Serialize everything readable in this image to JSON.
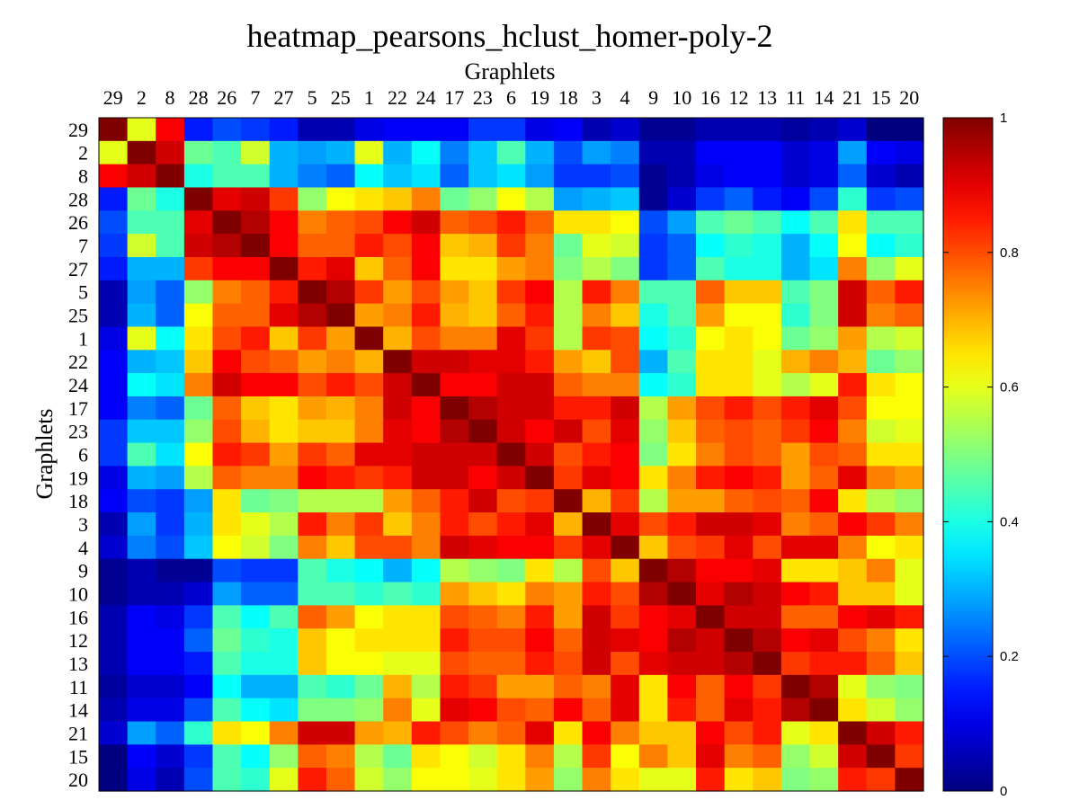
{
  "chart_data": {
    "type": "heatmap",
    "title": "heatmap_pearsons_hclust_homer-poly-2",
    "xlabel": "Graphlets",
    "ylabel": "Graphlets",
    "labels": [
      "29",
      "2",
      "8",
      "28",
      "26",
      "7",
      "27",
      "5",
      "25",
      "1",
      "22",
      "24",
      "17",
      "23",
      "6",
      "19",
      "18",
      "3",
      "4",
      "9",
      "10",
      "16",
      "12",
      "13",
      "11",
      "14",
      "21",
      "15",
      "20"
    ],
    "colorbar": {
      "min": 0,
      "max": 1,
      "ticks": [
        0,
        0.2,
        0.4,
        0.6,
        0.8,
        1
      ],
      "tick_labels": [
        "0",
        "0.2",
        "0.4",
        "0.6",
        "0.8",
        "1"
      ]
    },
    "colormap": "jet",
    "values": [
      [
        1.0,
        0.6,
        0.88,
        0.15,
        0.2,
        0.18,
        0.15,
        0.05,
        0.05,
        0.1,
        0.12,
        0.12,
        0.12,
        0.18,
        0.18,
        0.1,
        0.12,
        0.05,
        0.08,
        0.02,
        0.02,
        0.05,
        0.05,
        0.05,
        0.03,
        0.05,
        0.08,
        0.0,
        0.0
      ],
      [
        0.6,
        1.0,
        0.92,
        0.48,
        0.45,
        0.58,
        0.3,
        0.28,
        0.3,
        0.6,
        0.3,
        0.38,
        0.25,
        0.32,
        0.45,
        0.3,
        0.2,
        0.28,
        0.25,
        0.05,
        0.05,
        0.12,
        0.12,
        0.12,
        0.08,
        0.1,
        0.28,
        0.12,
        0.1
      ],
      [
        0.88,
        0.92,
        1.0,
        0.4,
        0.45,
        0.45,
        0.3,
        0.25,
        0.22,
        0.38,
        0.32,
        0.35,
        0.22,
        0.32,
        0.35,
        0.28,
        0.18,
        0.18,
        0.2,
        0.02,
        0.05,
        0.1,
        0.12,
        0.12,
        0.08,
        0.1,
        0.22,
        0.08,
        0.05
      ],
      [
        0.15,
        0.48,
        0.4,
        1.0,
        0.9,
        0.92,
        0.82,
        0.52,
        0.62,
        0.65,
        0.68,
        0.75,
        0.48,
        0.52,
        0.62,
        0.55,
        0.28,
        0.3,
        0.32,
        0.02,
        0.08,
        0.18,
        0.22,
        0.15,
        0.12,
        0.2,
        0.42,
        0.18,
        0.2
      ],
      [
        0.2,
        0.45,
        0.45,
        0.9,
        1.0,
        0.95,
        0.88,
        0.75,
        0.78,
        0.8,
        0.88,
        0.92,
        0.78,
        0.8,
        0.85,
        0.78,
        0.65,
        0.65,
        0.62,
        0.2,
        0.28,
        0.45,
        0.48,
        0.45,
        0.38,
        0.45,
        0.65,
        0.45,
        0.45
      ],
      [
        0.18,
        0.58,
        0.45,
        0.92,
        0.95,
        1.0,
        0.88,
        0.78,
        0.78,
        0.85,
        0.8,
        0.88,
        0.68,
        0.7,
        0.82,
        0.75,
        0.48,
        0.6,
        0.58,
        0.18,
        0.22,
        0.38,
        0.42,
        0.4,
        0.3,
        0.38,
        0.62,
        0.38,
        0.42
      ],
      [
        0.15,
        0.3,
        0.3,
        0.82,
        0.88,
        0.88,
        1.0,
        0.85,
        0.9,
        0.68,
        0.78,
        0.88,
        0.65,
        0.65,
        0.72,
        0.75,
        0.5,
        0.55,
        0.5,
        0.18,
        0.22,
        0.45,
        0.4,
        0.4,
        0.3,
        0.35,
        0.75,
        0.52,
        0.6
      ],
      [
        0.05,
        0.28,
        0.22,
        0.52,
        0.75,
        0.78,
        0.85,
        1.0,
        0.95,
        0.82,
        0.72,
        0.8,
        0.72,
        0.68,
        0.82,
        0.88,
        0.55,
        0.85,
        0.75,
        0.45,
        0.45,
        0.78,
        0.68,
        0.68,
        0.45,
        0.5,
        0.92,
        0.78,
        0.85
      ],
      [
        0.05,
        0.3,
        0.22,
        0.62,
        0.78,
        0.78,
        0.9,
        0.95,
        1.0,
        0.72,
        0.75,
        0.85,
        0.7,
        0.68,
        0.78,
        0.85,
        0.55,
        0.75,
        0.68,
        0.4,
        0.45,
        0.72,
        0.62,
        0.62,
        0.42,
        0.5,
        0.92,
        0.75,
        0.78
      ],
      [
        0.1,
        0.6,
        0.38,
        0.65,
        0.8,
        0.85,
        0.68,
        0.82,
        0.72,
        1.0,
        0.7,
        0.8,
        0.75,
        0.75,
        0.9,
        0.82,
        0.55,
        0.82,
        0.8,
        0.38,
        0.42,
        0.62,
        0.65,
        0.62,
        0.48,
        0.52,
        0.72,
        0.55,
        0.58
      ],
      [
        0.12,
        0.3,
        0.32,
        0.68,
        0.88,
        0.8,
        0.78,
        0.72,
        0.75,
        0.7,
        1.0,
        0.92,
        0.92,
        0.9,
        0.9,
        0.85,
        0.72,
        0.68,
        0.8,
        0.3,
        0.45,
        0.65,
        0.65,
        0.6,
        0.7,
        0.75,
        0.7,
        0.48,
        0.52
      ],
      [
        0.12,
        0.38,
        0.35,
        0.75,
        0.92,
        0.88,
        0.88,
        0.8,
        0.85,
        0.8,
        0.92,
        1.0,
        0.88,
        0.88,
        0.92,
        0.92,
        0.78,
        0.75,
        0.75,
        0.38,
        0.42,
        0.65,
        0.65,
        0.6,
        0.55,
        0.6,
        0.85,
        0.65,
        0.62
      ],
      [
        0.12,
        0.25,
        0.22,
        0.48,
        0.78,
        0.68,
        0.65,
        0.72,
        0.7,
        0.75,
        0.92,
        0.88,
        1.0,
        0.95,
        0.92,
        0.92,
        0.85,
        0.85,
        0.92,
        0.55,
        0.72,
        0.8,
        0.85,
        0.8,
        0.85,
        0.9,
        0.8,
        0.62,
        0.62
      ],
      [
        0.18,
        0.32,
        0.32,
        0.52,
        0.8,
        0.7,
        0.65,
        0.68,
        0.68,
        0.75,
        0.9,
        0.88,
        0.95,
        1.0,
        0.92,
        0.88,
        0.92,
        0.8,
        0.9,
        0.52,
        0.68,
        0.78,
        0.8,
        0.78,
        0.82,
        0.88,
        0.75,
        0.58,
        0.6
      ],
      [
        0.18,
        0.45,
        0.35,
        0.62,
        0.85,
        0.82,
        0.72,
        0.82,
        0.78,
        0.9,
        0.9,
        0.92,
        0.92,
        0.92,
        1.0,
        0.92,
        0.8,
        0.85,
        0.88,
        0.5,
        0.65,
        0.75,
        0.8,
        0.78,
        0.72,
        0.8,
        0.78,
        0.65,
        0.65
      ],
      [
        0.1,
        0.3,
        0.28,
        0.55,
        0.78,
        0.75,
        0.75,
        0.88,
        0.85,
        0.82,
        0.85,
        0.92,
        0.92,
        0.88,
        0.92,
        1.0,
        0.82,
        0.9,
        0.88,
        0.65,
        0.75,
        0.85,
        0.88,
        0.85,
        0.72,
        0.78,
        0.9,
        0.75,
        0.72
      ],
      [
        0.12,
        0.2,
        0.18,
        0.28,
        0.65,
        0.48,
        0.5,
        0.55,
        0.55,
        0.55,
        0.72,
        0.78,
        0.85,
        0.92,
        0.8,
        0.82,
        1.0,
        0.7,
        0.82,
        0.55,
        0.72,
        0.72,
        0.78,
        0.8,
        0.78,
        0.88,
        0.65,
        0.55,
        0.52
      ],
      [
        0.05,
        0.28,
        0.18,
        0.3,
        0.65,
        0.6,
        0.55,
        0.85,
        0.75,
        0.82,
        0.68,
        0.75,
        0.85,
        0.8,
        0.85,
        0.9,
        0.7,
        1.0,
        0.9,
        0.8,
        0.85,
        0.92,
        0.92,
        0.9,
        0.75,
        0.78,
        0.88,
        0.82,
        0.75
      ],
      [
        0.08,
        0.25,
        0.2,
        0.32,
        0.62,
        0.58,
        0.5,
        0.75,
        0.68,
        0.8,
        0.8,
        0.75,
        0.92,
        0.9,
        0.88,
        0.88,
        0.82,
        0.9,
        1.0,
        0.68,
        0.8,
        0.82,
        0.9,
        0.8,
        0.9,
        0.9,
        0.75,
        0.62,
        0.65
      ],
      [
        0.02,
        0.05,
        0.02,
        0.02,
        0.2,
        0.18,
        0.18,
        0.45,
        0.4,
        0.38,
        0.3,
        0.38,
        0.55,
        0.52,
        0.5,
        0.65,
        0.55,
        0.8,
        0.68,
        1.0,
        0.95,
        0.88,
        0.88,
        0.9,
        0.65,
        0.65,
        0.68,
        0.75,
        0.6
      ],
      [
        0.02,
        0.05,
        0.05,
        0.08,
        0.28,
        0.22,
        0.22,
        0.45,
        0.45,
        0.42,
        0.45,
        0.42,
        0.72,
        0.68,
        0.65,
        0.75,
        0.72,
        0.85,
        0.8,
        0.95,
        1.0,
        0.9,
        0.95,
        0.92,
        0.88,
        0.85,
        0.68,
        0.68,
        0.6
      ],
      [
        0.05,
        0.12,
        0.1,
        0.18,
        0.45,
        0.38,
        0.45,
        0.78,
        0.72,
        0.62,
        0.65,
        0.65,
        0.8,
        0.78,
        0.75,
        0.85,
        0.72,
        0.92,
        0.82,
        0.88,
        0.9,
        1.0,
        0.92,
        0.92,
        0.78,
        0.78,
        0.88,
        0.9,
        0.85
      ],
      [
        0.05,
        0.12,
        0.12,
        0.22,
        0.48,
        0.42,
        0.4,
        0.68,
        0.62,
        0.65,
        0.65,
        0.65,
        0.85,
        0.8,
        0.8,
        0.88,
        0.78,
        0.92,
        0.9,
        0.88,
        0.95,
        0.92,
        1.0,
        0.95,
        0.88,
        0.9,
        0.8,
        0.75,
        0.65
      ],
      [
        0.05,
        0.12,
        0.12,
        0.15,
        0.45,
        0.4,
        0.4,
        0.68,
        0.62,
        0.62,
        0.6,
        0.6,
        0.8,
        0.78,
        0.78,
        0.85,
        0.8,
        0.92,
        0.8,
        0.9,
        0.92,
        0.92,
        0.95,
        1.0,
        0.82,
        0.85,
        0.85,
        0.78,
        0.68
      ],
      [
        0.03,
        0.08,
        0.08,
        0.12,
        0.38,
        0.3,
        0.3,
        0.45,
        0.42,
        0.48,
        0.7,
        0.55,
        0.85,
        0.82,
        0.72,
        0.72,
        0.78,
        0.75,
        0.9,
        0.65,
        0.88,
        0.78,
        0.88,
        0.82,
        1.0,
        0.95,
        0.6,
        0.52,
        0.5
      ],
      [
        0.05,
        0.1,
        0.1,
        0.2,
        0.45,
        0.38,
        0.35,
        0.5,
        0.5,
        0.52,
        0.75,
        0.6,
        0.9,
        0.88,
        0.8,
        0.78,
        0.88,
        0.78,
        0.9,
        0.65,
        0.85,
        0.78,
        0.9,
        0.85,
        0.95,
        1.0,
        0.65,
        0.58,
        0.52
      ],
      [
        0.08,
        0.28,
        0.22,
        0.42,
        0.65,
        0.62,
        0.75,
        0.92,
        0.92,
        0.72,
        0.7,
        0.85,
        0.8,
        0.75,
        0.78,
        0.9,
        0.65,
        0.88,
        0.75,
        0.68,
        0.68,
        0.88,
        0.8,
        0.85,
        0.6,
        0.65,
        1.0,
        0.92,
        0.85
      ],
      [
        0.0,
        0.12,
        0.08,
        0.18,
        0.45,
        0.38,
        0.52,
        0.78,
        0.75,
        0.55,
        0.48,
        0.65,
        0.62,
        0.58,
        0.65,
        0.75,
        0.55,
        0.82,
        0.62,
        0.75,
        0.68,
        0.9,
        0.75,
        0.78,
        0.52,
        0.58,
        0.92,
        1.0,
        0.82
      ],
      [
        0.0,
        0.1,
        0.05,
        0.2,
        0.45,
        0.42,
        0.6,
        0.85,
        0.78,
        0.58,
        0.52,
        0.62,
        0.62,
        0.6,
        0.65,
        0.72,
        0.52,
        0.75,
        0.65,
        0.6,
        0.6,
        0.85,
        0.65,
        0.68,
        0.5,
        0.52,
        0.85,
        0.82,
        1.0
      ]
    ]
  }
}
